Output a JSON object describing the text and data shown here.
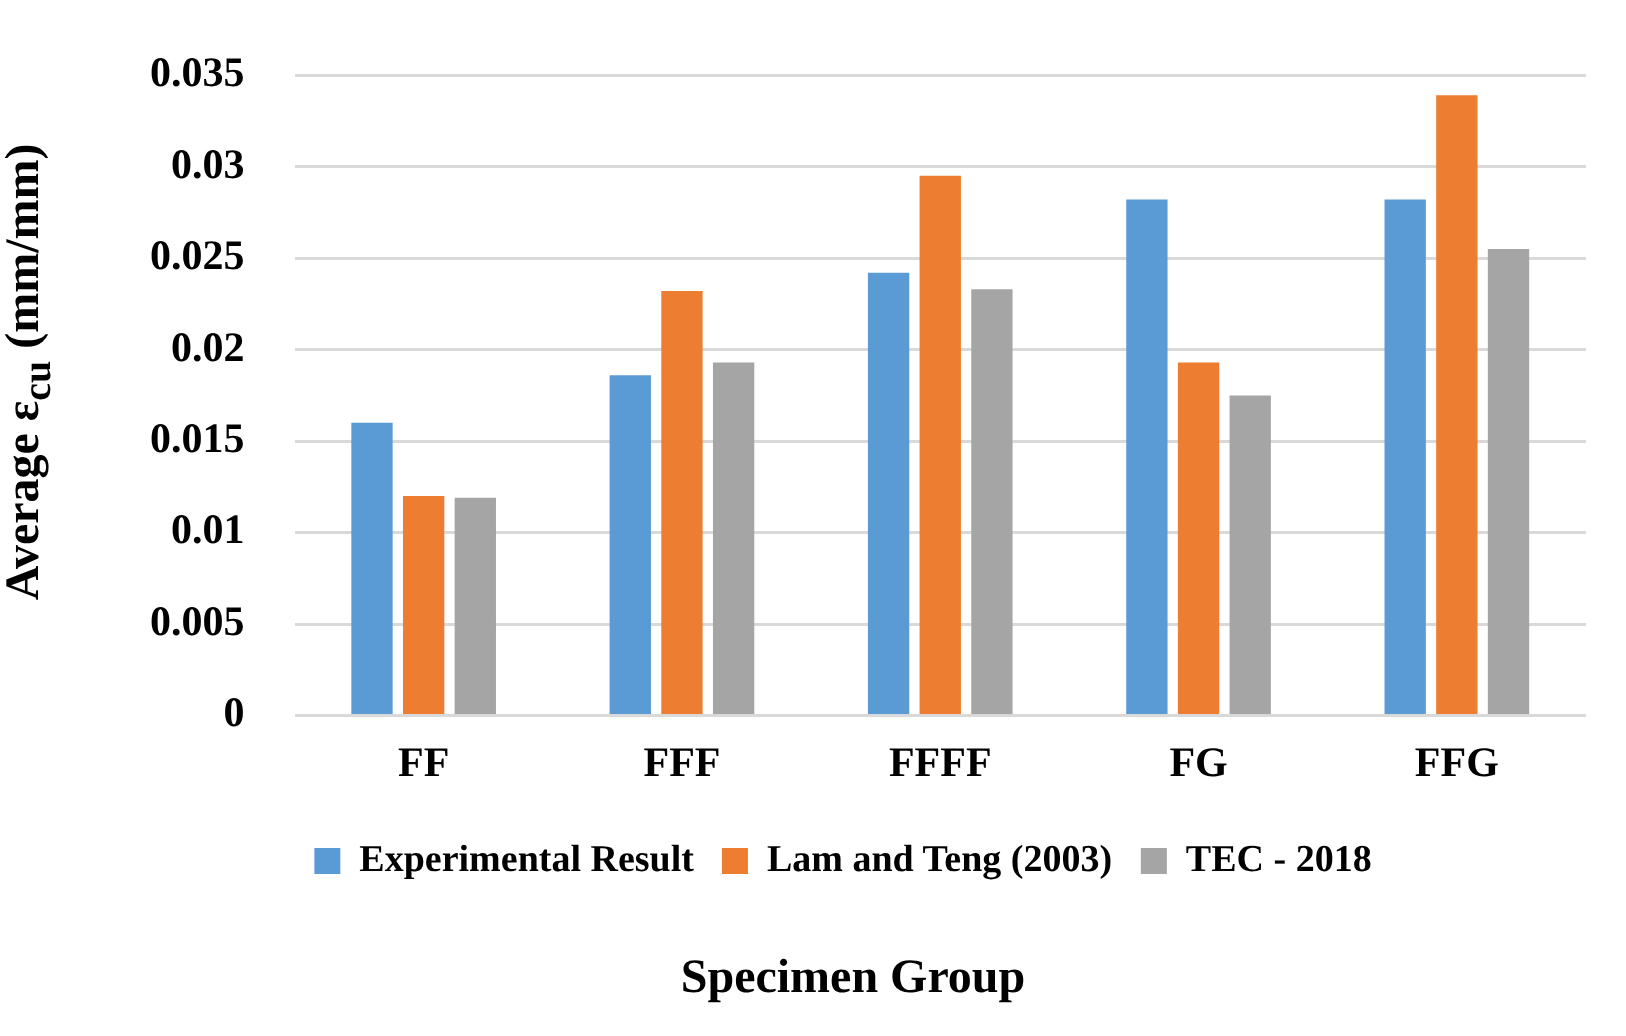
{
  "chart_data": {
    "type": "bar",
    "xlabel": "Specimen Group",
    "ylabel": "Average ε$_{cu}$ (mm/mm)",
    "categories": [
      "FF",
      "FFF",
      "FFFF",
      "FG",
      "FFG"
    ],
    "series": [
      {
        "name": "Experimental Result",
        "color": "#5b9bd5",
        "values": [
          0.016,
          0.0186,
          0.0242,
          0.0282,
          0.0282
        ]
      },
      {
        "name": "Lam and Teng (2003)",
        "color": "#ed7d31",
        "values": [
          0.012,
          0.0232,
          0.0295,
          0.0193,
          0.0339
        ]
      },
      {
        "name": "TEC - 2018",
        "color": "#a5a5a5",
        "values": [
          0.0119,
          0.0193,
          0.0233,
          0.0175,
          0.0255
        ]
      }
    ],
    "ylim": [
      0,
      0.035
    ],
    "yticks": [
      0,
      0.005,
      0.01,
      0.015,
      0.02,
      0.025,
      0.03,
      0.035
    ],
    "grid": "y",
    "legend": "bottom"
  }
}
